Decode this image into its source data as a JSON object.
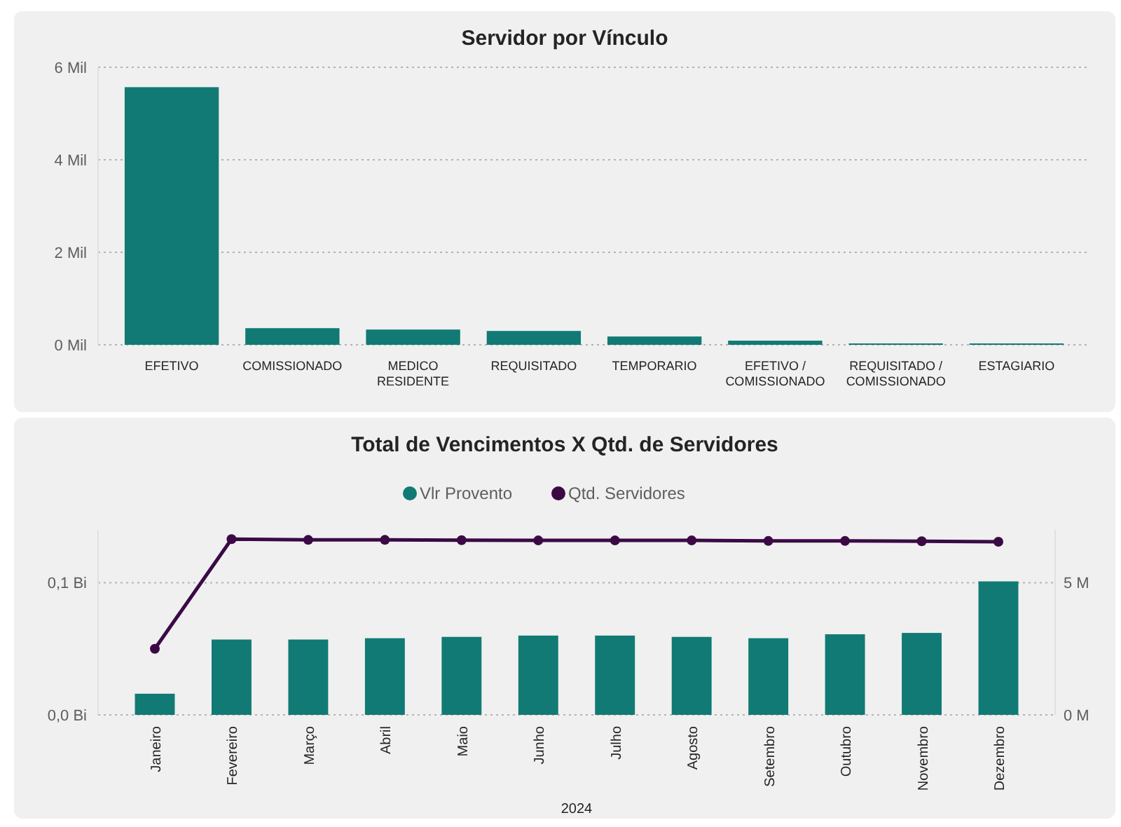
{
  "chart_data": [
    {
      "type": "bar",
      "title": "Servidor por Vínculo",
      "categories": [
        "EFETIVO",
        "COMISSIONADO",
        "MEDICO RESIDENTE",
        "REQUISITADO",
        "TEMPORARIO",
        "EFETIVO / COMISSIONADO",
        "REQUISITADO / COMISSIONADO",
        "ESTAGIARIO"
      ],
      "series": [
        {
          "color": "#117a74",
          "values": [
            5.57,
            0.36,
            0.33,
            0.3,
            0.18,
            0.09,
            0.03,
            0.03
          ]
        }
      ],
      "ylim": [
        0,
        6
      ],
      "yticks": [
        {
          "value": 0,
          "label": "0 Mil"
        },
        {
          "value": 2,
          "label": "2 Mil"
        },
        {
          "value": 4,
          "label": "4 Mil"
        },
        {
          "value": 6,
          "label": "6 Mil"
        }
      ],
      "grid": "y",
      "legend": false
    },
    {
      "type": "bar",
      "title": "Total de Vencimentos X Qtd. de Servidores",
      "xlabel": "2024",
      "categories": [
        "Janeiro",
        "Fevereiro",
        "Março",
        "Abril",
        "Maio",
        "Junho",
        "Julho",
        "Agosto",
        "Setembro",
        "Outubro",
        "Novembro",
        "Dezembro"
      ],
      "series": [
        {
          "name": "Vlr Provento",
          "color": "#117a74",
          "values": [
            0.016,
            0.057,
            0.057,
            0.058,
            0.059,
            0.06,
            0.06,
            0.059,
            0.058,
            0.061,
            0.062,
            0.101
          ]
        },
        {
          "name": "Qtd. Servidores",
          "type": "line",
          "axis": "y2",
          "color": "#3b0a45",
          "values": [
            2.5,
            6.65,
            6.62,
            6.62,
            6.61,
            6.6,
            6.6,
            6.6,
            6.58,
            6.58,
            6.57,
            6.55
          ]
        }
      ],
      "ylim": [
        0,
        0.14
      ],
      "yticks": [
        {
          "value": 0,
          "label": "0,0 Bi"
        },
        {
          "value": 0.1,
          "label": "0,1 Bi"
        }
      ],
      "y2lim": [
        0,
        7
      ],
      "y2ticks": [
        {
          "value": 0,
          "label": "0 M"
        },
        {
          "value": 5,
          "label": "5 M"
        }
      ],
      "grid": "y",
      "legend": "top",
      "marker": "circle"
    }
  ]
}
